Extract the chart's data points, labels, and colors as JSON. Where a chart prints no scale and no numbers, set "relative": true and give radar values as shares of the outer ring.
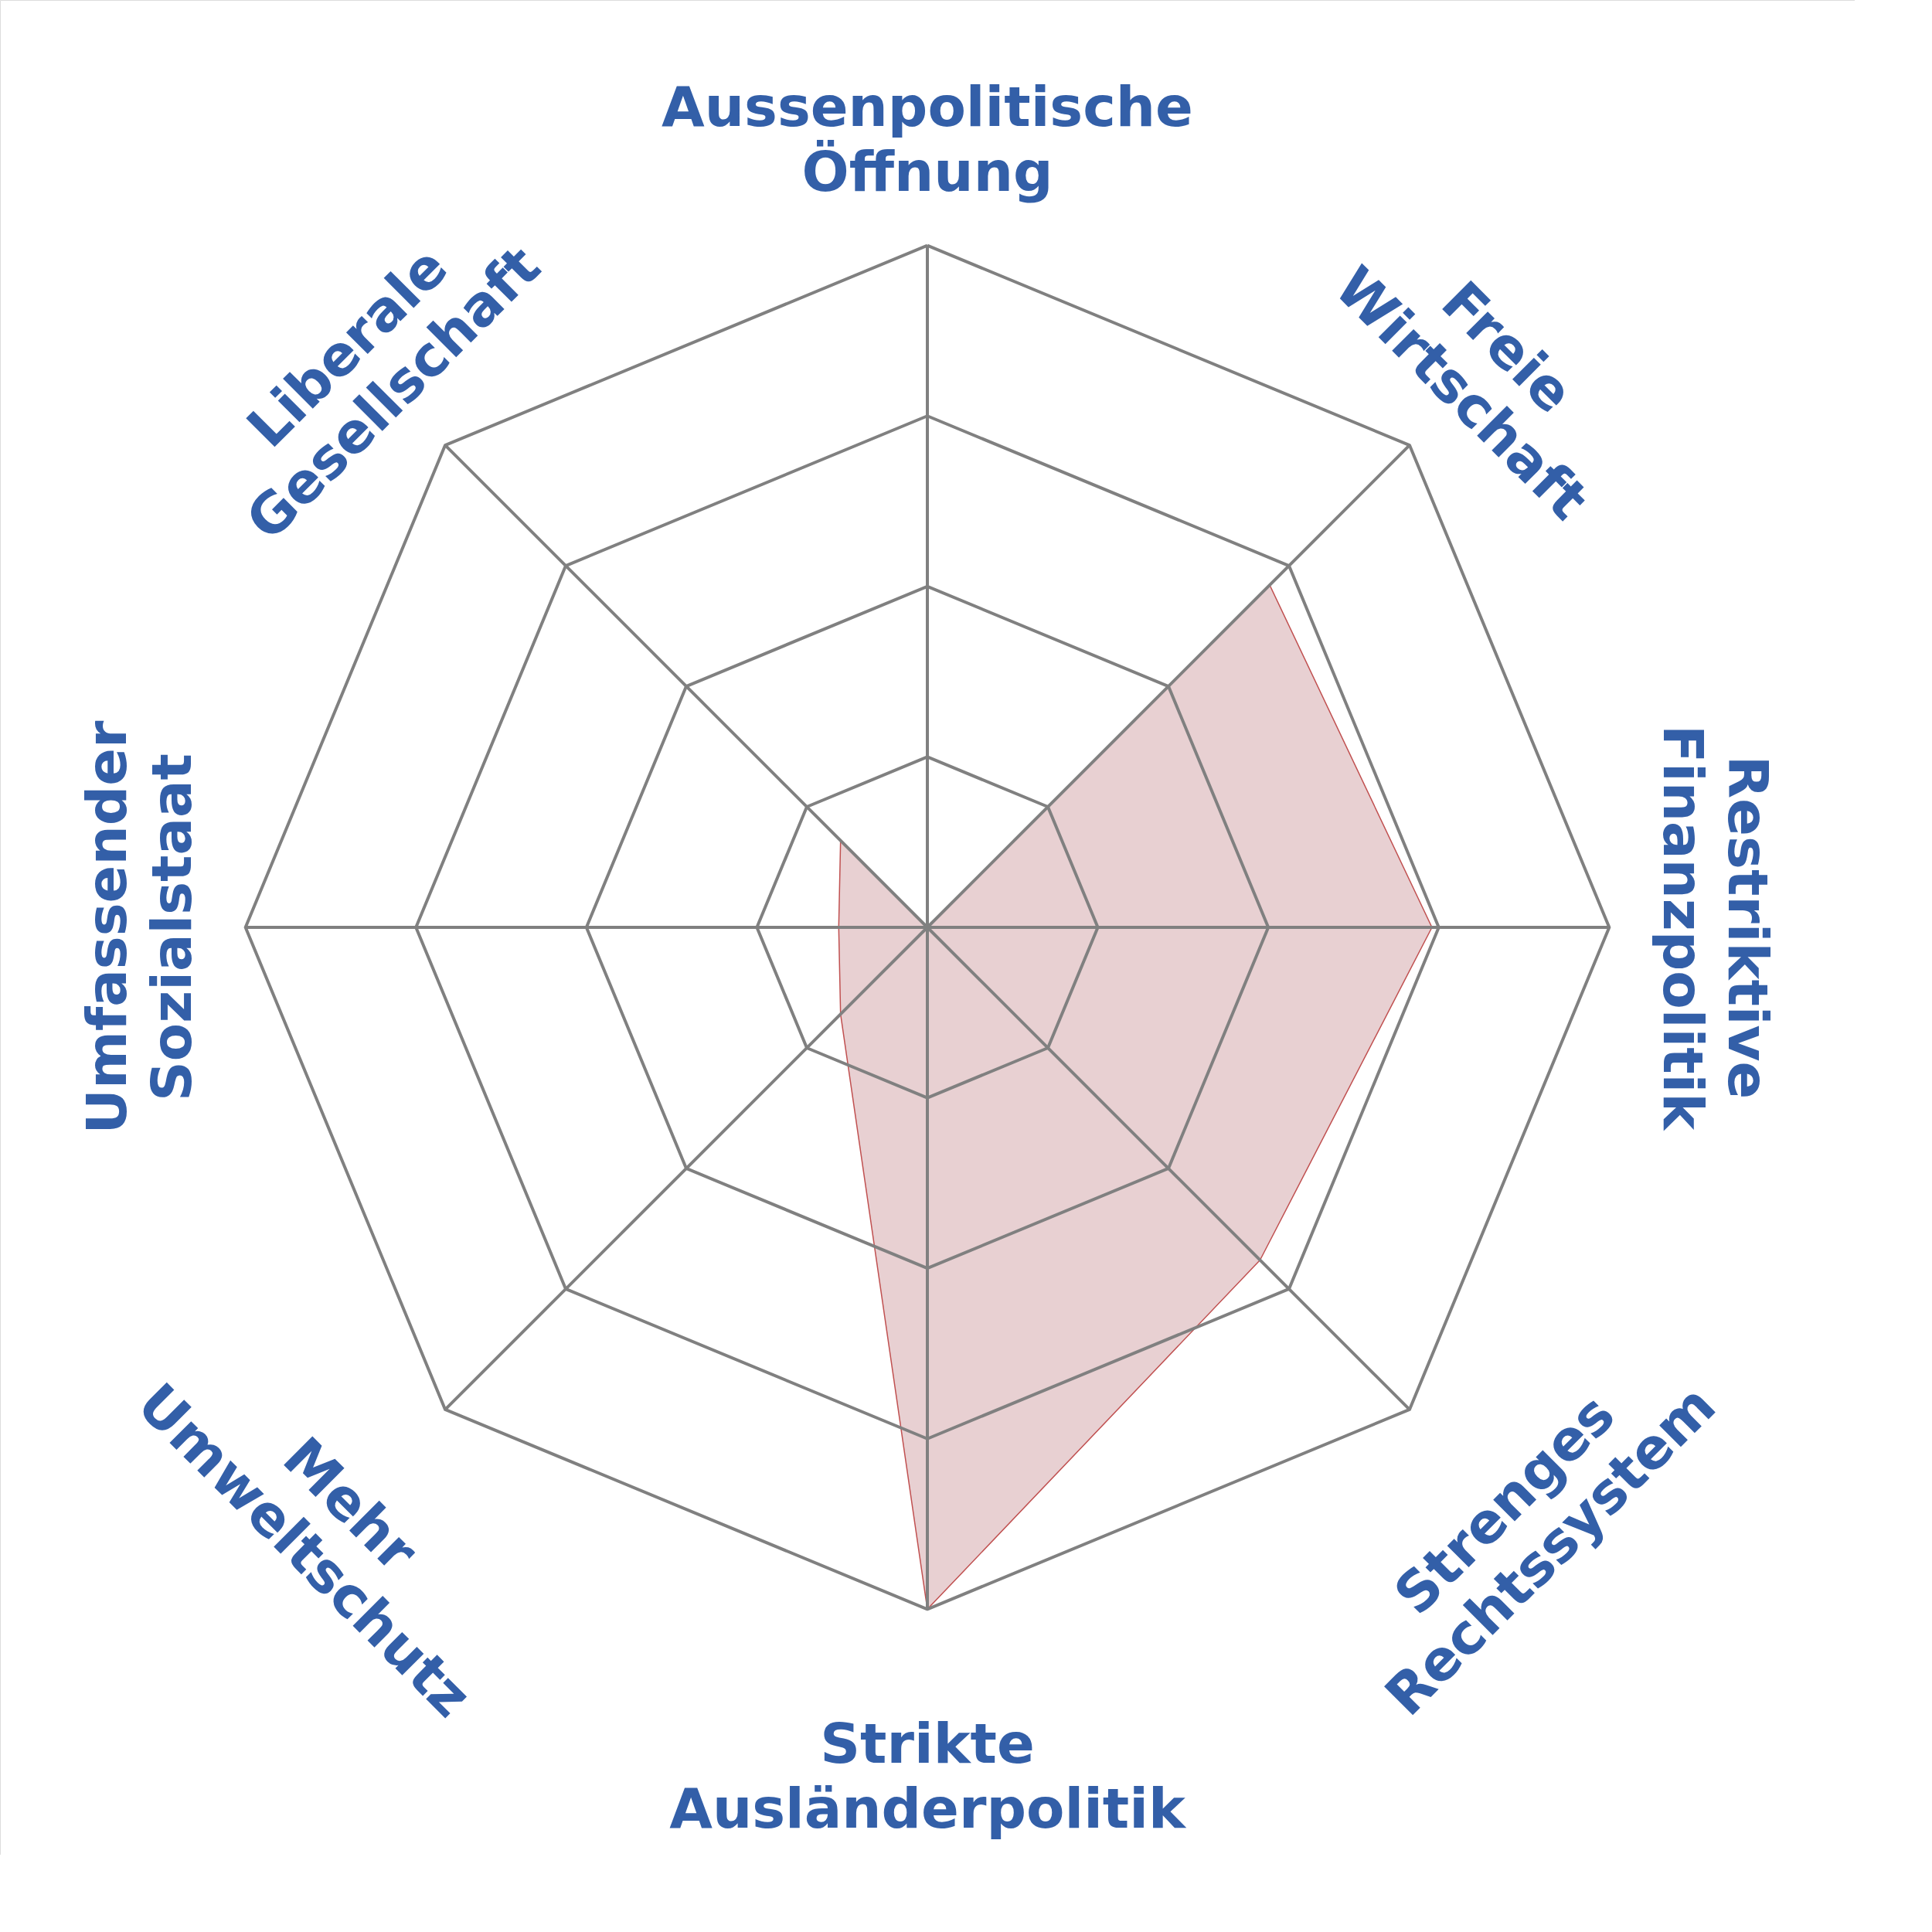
{
  "chart_data": {
    "type": "radar",
    "relative": true,
    "grid": true,
    "categories": [
      "Aussenpolitische Öffnung",
      "Freie Wirtschaft",
      "Restriktive Finanzpolitik",
      "Strenges Rechtssystem",
      "Strikte Ausländerpolitik",
      "Mehr Umweltschutz",
      "Umfassender Sozialstaat",
      "Liberale Gesellschaft"
    ],
    "series": [
      {
        "color": "#e8d0d2",
        "values": [
          0,
          0.71,
          0.74,
          0.69,
          1.0,
          0.18,
          0.13,
          0.18
        ]
      }
    ]
  }
}
